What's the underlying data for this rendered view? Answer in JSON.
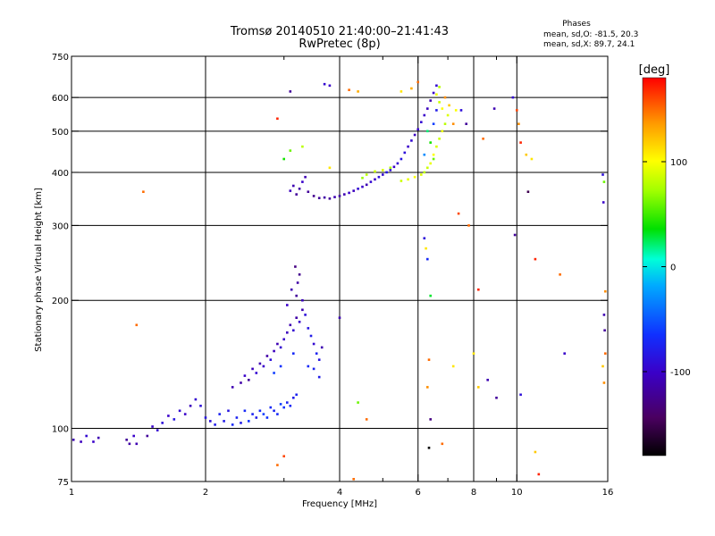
{
  "chart_data": {
    "type": "scatter",
    "title": "Tromsø 20140510 21:40:00–21:41:43",
    "subtitle": "RwPretec (8p)",
    "phases_box": {
      "title": "Phases",
      "line_o": "mean, sd,O: -81.5, 20.3",
      "line_x": "mean, sd,X: 89.7, 24.1"
    },
    "xlabel": "Frequency [MHz]",
    "ylabel": "Stationary phase Virtual Height [km]",
    "xscale": "log",
    "yscale": "log",
    "xlim": [
      1,
      16
    ],
    "ylim": [
      75,
      750
    ],
    "x_ticks": [
      1,
      2,
      4,
      6,
      8,
      10,
      16
    ],
    "x_tick_labels": [
      "1",
      "2",
      "4",
      "6",
      "8",
      "10",
      "16"
    ],
    "x_minor_ticks": [
      3,
      5,
      7,
      9
    ],
    "y_ticks": [
      75,
      100,
      200,
      300,
      400,
      500,
      600,
      750
    ],
    "y_tick_labels": [
      "75",
      "100",
      "200",
      "300",
      "400",
      "500",
      "600",
      "750"
    ],
    "x_grid": [
      2,
      4,
      6,
      8,
      10
    ],
    "y_grid": [
      100,
      200,
      300,
      400,
      500,
      600
    ],
    "grid": true,
    "colorbar": {
      "label": "[deg]",
      "range": [
        -180,
        180
      ],
      "ticks": [
        100,
        0,
        -100
      ],
      "tick_labels": [
        "100",
        "0",
        "-100"
      ]
    },
    "series": [
      {
        "points": [
          [
            1.01,
            94,
            -110
          ],
          [
            1.05,
            93,
            -105
          ],
          [
            1.08,
            96,
            -95
          ],
          [
            1.12,
            93,
            -100
          ],
          [
            1.15,
            95,
            -110
          ],
          [
            1.33,
            94,
            -120
          ],
          [
            1.35,
            92,
            -115
          ],
          [
            1.38,
            96,
            -100
          ],
          [
            1.4,
            92,
            -110
          ],
          [
            1.48,
            96,
            -120
          ],
          [
            1.52,
            101,
            -100
          ],
          [
            1.56,
            99,
            -95
          ],
          [
            1.6,
            103,
            -90
          ],
          [
            1.65,
            107,
            -100
          ],
          [
            1.7,
            105,
            -85
          ],
          [
            1.75,
            110,
            -95
          ],
          [
            1.8,
            108,
            -100
          ],
          [
            1.85,
            113,
            -105
          ],
          [
            1.9,
            117,
            -95
          ],
          [
            1.95,
            113,
            -90
          ],
          [
            2.0,
            106,
            -85
          ],
          [
            2.05,
            104,
            -90
          ],
          [
            2.1,
            102,
            -80
          ],
          [
            2.15,
            108,
            -75
          ],
          [
            2.2,
            104,
            -80
          ],
          [
            2.25,
            110,
            -85
          ],
          [
            2.3,
            102,
            -70
          ],
          [
            2.35,
            106,
            -75
          ],
          [
            2.4,
            103,
            -80
          ],
          [
            2.45,
            110,
            -70
          ],
          [
            2.5,
            104,
            -65
          ],
          [
            2.55,
            108,
            -75
          ],
          [
            2.6,
            106,
            -80
          ],
          [
            2.65,
            110,
            -70
          ],
          [
            2.7,
            108,
            -60
          ],
          [
            2.75,
            106,
            -65
          ],
          [
            2.8,
            112,
            -70
          ],
          [
            2.85,
            110,
            -75
          ],
          [
            2.9,
            108,
            -70
          ],
          [
            2.95,
            114,
            -60
          ],
          [
            3.0,
            112,
            -65
          ],
          [
            3.05,
            115,
            -75
          ],
          [
            3.1,
            113,
            -70
          ],
          [
            3.15,
            118,
            -80
          ],
          [
            3.2,
            120,
            -75
          ],
          [
            2.3,
            125,
            -110
          ],
          [
            2.4,
            128,
            -115
          ],
          [
            2.45,
            133,
            -100
          ],
          [
            2.5,
            130,
            -120
          ],
          [
            2.55,
            138,
            -105
          ],
          [
            2.6,
            135,
            -95
          ],
          [
            2.65,
            142,
            -110
          ],
          [
            2.7,
            140,
            -100
          ],
          [
            2.75,
            148,
            -115
          ],
          [
            2.8,
            145,
            -90
          ],
          [
            2.85,
            152,
            -105
          ],
          [
            2.9,
            158,
            -110
          ],
          [
            2.95,
            155,
            -95
          ],
          [
            3.0,
            162,
            -100
          ],
          [
            3.05,
            168,
            -105
          ],
          [
            3.1,
            175,
            -110
          ],
          [
            3.15,
            170,
            -95
          ],
          [
            3.2,
            182,
            -115
          ],
          [
            3.25,
            178,
            -100
          ],
          [
            3.3,
            190,
            -110
          ],
          [
            3.35,
            185,
            -90
          ],
          [
            3.4,
            172,
            -85
          ],
          [
            3.45,
            165,
            -80
          ],
          [
            3.5,
            158,
            -95
          ],
          [
            3.55,
            150,
            -75
          ],
          [
            3.6,
            145,
            -85
          ],
          [
            3.65,
            155,
            -110
          ],
          [
            3.2,
            205,
            -120
          ],
          [
            3.22,
            220,
            -115
          ],
          [
            3.18,
            240,
            -130
          ],
          [
            3.25,
            230,
            -125
          ],
          [
            3.12,
            212,
            -110
          ],
          [
            3.3,
            200,
            -105
          ],
          [
            3.05,
            195,
            -100
          ],
          [
            3.15,
            150,
            -70
          ],
          [
            2.95,
            140,
            -65
          ],
          [
            2.85,
            135,
            -60
          ],
          [
            3.4,
            140,
            -70
          ],
          [
            3.5,
            138,
            -75
          ],
          [
            3.6,
            132,
            -80
          ],
          [
            3.1,
            362,
            -105
          ],
          [
            3.15,
            372,
            -110
          ],
          [
            3.2,
            355,
            -120
          ],
          [
            3.25,
            366,
            -115
          ],
          [
            3.3,
            380,
            -100
          ],
          [
            3.35,
            390,
            -110
          ],
          [
            3.4,
            360,
            -120
          ],
          [
            3.5,
            352,
            -125
          ],
          [
            3.6,
            348,
            -120
          ],
          [
            3.7,
            349,
            -115
          ],
          [
            3.8,
            347,
            -120
          ],
          [
            3.9,
            350,
            -110
          ],
          [
            4.0,
            352,
            -115
          ],
          [
            4.1,
            355,
            -110
          ],
          [
            4.2,
            358,
            -100
          ],
          [
            4.3,
            362,
            -105
          ],
          [
            4.4,
            366,
            -95
          ],
          [
            4.5,
            370,
            -100
          ],
          [
            4.6,
            374,
            -110
          ],
          [
            4.7,
            380,
            -95
          ],
          [
            4.8,
            385,
            -100
          ],
          [
            4.9,
            390,
            -90
          ],
          [
            5.0,
            395,
            -95
          ],
          [
            5.1,
            400,
            -85
          ],
          [
            5.2,
            405,
            -90
          ],
          [
            5.3,
            412,
            -100
          ],
          [
            5.4,
            420,
            -95
          ],
          [
            5.5,
            430,
            -85
          ],
          [
            5.6,
            445,
            -90
          ],
          [
            5.7,
            460,
            -100
          ],
          [
            5.8,
            475,
            -95
          ],
          [
            5.9,
            490,
            -105
          ],
          [
            6.0,
            505,
            -100
          ],
          [
            6.1,
            525,
            -95
          ],
          [
            6.2,
            545,
            -100
          ],
          [
            6.3,
            565,
            -105
          ],
          [
            6.4,
            590,
            -110
          ],
          [
            6.5,
            615,
            -100
          ],
          [
            6.6,
            640,
            -95
          ],
          [
            4.5,
            388,
            70
          ],
          [
            4.6,
            395,
            80
          ],
          [
            4.8,
            402,
            85
          ],
          [
            5.0,
            405,
            90
          ],
          [
            5.2,
            410,
            75
          ],
          [
            5.5,
            382,
            85
          ],
          [
            5.7,
            385,
            95
          ],
          [
            5.9,
            390,
            100
          ],
          [
            6.1,
            395,
            90
          ],
          [
            6.2,
            400,
            80
          ],
          [
            6.3,
            410,
            85
          ],
          [
            6.4,
            420,
            95
          ],
          [
            6.5,
            440,
            100
          ],
          [
            6.6,
            460,
            90
          ],
          [
            6.7,
            480,
            85
          ],
          [
            6.8,
            500,
            95
          ],
          [
            6.9,
            520,
            80
          ],
          [
            7.0,
            545,
            90
          ],
          [
            6.8,
            565,
            100
          ],
          [
            6.7,
            585,
            85
          ],
          [
            6.6,
            610,
            95
          ],
          [
            6.7,
            635,
            80
          ],
          [
            6.9,
            600,
            140
          ],
          [
            7.05,
            575,
            120
          ],
          [
            6.5,
            430,
            60
          ],
          [
            6.4,
            470,
            40
          ],
          [
            6.3,
            500,
            20
          ],
          [
            6.2,
            440,
            -30
          ],
          [
            6.5,
            520,
            -60
          ],
          [
            6.6,
            560,
            -80
          ],
          [
            6.0,
            652,
            150
          ],
          [
            5.8,
            630,
            130
          ],
          [
            5.5,
            620,
            110
          ],
          [
            7.2,
            520,
            140
          ],
          [
            7.3,
            560,
            100
          ],
          [
            3.7,
            645,
            -95
          ],
          [
            3.8,
            640,
            -100
          ],
          [
            4.2,
            625,
            150
          ],
          [
            4.4,
            620,
            130
          ],
          [
            2.9,
            535,
            170
          ],
          [
            3.1,
            620,
            -120
          ],
          [
            3.0,
            430,
            40
          ],
          [
            3.1,
            450,
            60
          ],
          [
            3.3,
            460,
            80
          ],
          [
            3.8,
            410,
            110
          ],
          [
            7.5,
            560,
            -90
          ],
          [
            7.7,
            520,
            -120
          ],
          [
            8.4,
            480,
            150
          ],
          [
            8.9,
            565,
            -110
          ],
          [
            9.8,
            600,
            -95
          ],
          [
            10.0,
            560,
            160
          ],
          [
            10.1,
            520,
            140
          ],
          [
            10.2,
            470,
            170
          ],
          [
            10.5,
            440,
            120
          ],
          [
            10.8,
            430,
            110
          ],
          [
            10.6,
            360,
            -150
          ],
          [
            7.4,
            320,
            160
          ],
          [
            7.8,
            300,
            150
          ],
          [
            9.9,
            285,
            -120
          ],
          [
            11.0,
            250,
            170
          ],
          [
            12.5,
            230,
            150
          ],
          [
            8.2,
            212,
            170
          ],
          [
            4.0,
            182,
            -110
          ],
          [
            4.4,
            115,
            60
          ],
          [
            4.6,
            105,
            150
          ],
          [
            6.2,
            280,
            -90
          ],
          [
            6.25,
            265,
            110
          ],
          [
            6.3,
            250,
            -70
          ],
          [
            6.4,
            205,
            30
          ],
          [
            6.35,
            145,
            150
          ],
          [
            6.3,
            125,
            140
          ],
          [
            6.4,
            105,
            -130
          ],
          [
            6.35,
            90,
            -180
          ],
          [
            6.8,
            92,
            150
          ],
          [
            7.2,
            140,
            110
          ],
          [
            8.0,
            150,
            110
          ],
          [
            8.2,
            125,
            120
          ],
          [
            8.6,
            130,
            -110
          ],
          [
            9.0,
            118,
            -120
          ],
          [
            10.2,
            120,
            -90
          ],
          [
            11.0,
            88,
            120
          ],
          [
            11.2,
            78,
            170
          ],
          [
            12.8,
            150,
            -100
          ],
          [
            15.6,
            395,
            -90
          ],
          [
            15.7,
            380,
            60
          ],
          [
            15.65,
            340,
            -100
          ],
          [
            15.8,
            210,
            140
          ],
          [
            15.7,
            185,
            -110
          ],
          [
            15.75,
            170,
            -120
          ],
          [
            15.8,
            150,
            150
          ],
          [
            15.6,
            140,
            120
          ],
          [
            15.7,
            128,
            140
          ],
          [
            1.4,
            175,
            150
          ],
          [
            1.45,
            360,
            150
          ],
          [
            4.3,
            76,
            150
          ],
          [
            3.0,
            86,
            160
          ],
          [
            2.9,
            82,
            150
          ]
        ]
      }
    ]
  }
}
